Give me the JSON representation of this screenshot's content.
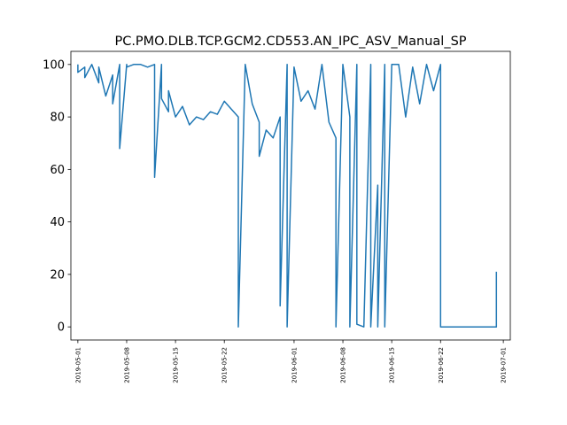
{
  "chart_data": {
    "type": "line",
    "title": "PC.PMO.DLB.TCP.GCM2.CD553.AN_IPC_ASV_Manual_SP",
    "xlabel": "",
    "ylabel": "",
    "xlim": [
      "2019-04-30",
      "2019-07-02"
    ],
    "ylim": [
      -5,
      105
    ],
    "xticks": [
      "2019-05-01",
      "2019-05-08",
      "2019-05-15",
      "2019-05-22",
      "2019-06-01",
      "2019-06-08",
      "2019-06-15",
      "2019-06-22",
      "2019-07-01"
    ],
    "yticks": [
      0,
      20,
      40,
      60,
      80,
      100
    ],
    "grid": false,
    "color": "#1f77b4",
    "series": [
      {
        "x": [
          "2019-05-01",
          "2019-05-01",
          "2019-05-02",
          "2019-05-02",
          "2019-05-03",
          "2019-05-04",
          "2019-05-04",
          "2019-05-05",
          "2019-05-06",
          "2019-05-06",
          "2019-05-07",
          "2019-05-07",
          "2019-05-08",
          "2019-05-08",
          "2019-05-09",
          "2019-05-10",
          "2019-05-11",
          "2019-05-12",
          "2019-05-12",
          "2019-05-13",
          "2019-05-13",
          "2019-05-14",
          "2019-05-14",
          "2019-05-15",
          "2019-05-16",
          "2019-05-17",
          "2019-05-18",
          "2019-05-19",
          "2019-05-20",
          "2019-05-21",
          "2019-05-22",
          "2019-05-23",
          "2019-05-24",
          "2019-05-24",
          "2019-05-25",
          "2019-05-26",
          "2019-05-27",
          "2019-05-27",
          "2019-05-28",
          "2019-05-29",
          "2019-05-30",
          "2019-05-30",
          "2019-05-31",
          "2019-05-31",
          "2019-06-01",
          "2019-06-02",
          "2019-06-03",
          "2019-06-04",
          "2019-06-05",
          "2019-06-06",
          "2019-06-07",
          "2019-06-07",
          "2019-06-08",
          "2019-06-09",
          "2019-06-09",
          "2019-06-10",
          "2019-06-10",
          "2019-06-11",
          "2019-06-12",
          "2019-06-12",
          "2019-06-13",
          "2019-06-13",
          "2019-06-14",
          "2019-06-14",
          "2019-06-15",
          "2019-06-16",
          "2019-06-17",
          "2019-06-18",
          "2019-06-19",
          "2019-06-20",
          "2019-06-21",
          "2019-06-22",
          "2019-06-22",
          "2019-06-23",
          "2019-06-25",
          "2019-06-28",
          "2019-06-30",
          "2019-06-30"
        ],
        "y": [
          100,
          97,
          99,
          95,
          100,
          93,
          99,
          88,
          96,
          85,
          100,
          68,
          100,
          99,
          100,
          100,
          99,
          100,
          57,
          100,
          87,
          82,
          90,
          80,
          84,
          77,
          80,
          79,
          82,
          81,
          86,
          83,
          80,
          0,
          100,
          85,
          78,
          65,
          75,
          72,
          80,
          8,
          100,
          0,
          99,
          86,
          90,
          83,
          100,
          78,
          72,
          0,
          100,
          80,
          0,
          100,
          1,
          0,
          100,
          0,
          54,
          0,
          100,
          0,
          100,
          100,
          80,
          99,
          85,
          100,
          90,
          100,
          0,
          0,
          0,
          0,
          0,
          21
        ]
      }
    ]
  }
}
